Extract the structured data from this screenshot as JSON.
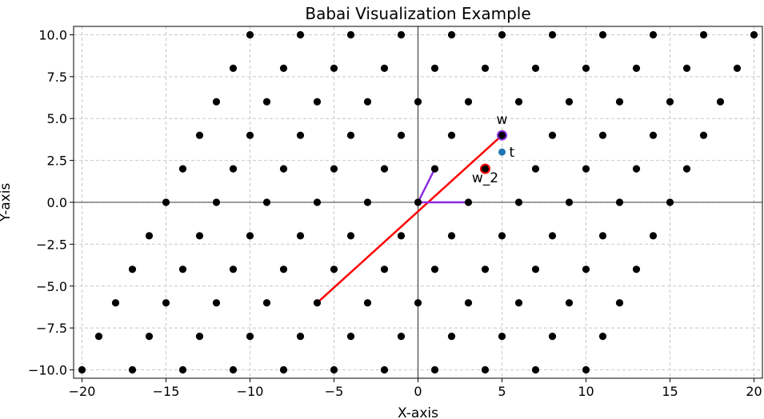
{
  "chart_data": {
    "type": "scatter",
    "title": "Babai Visualization Example",
    "xlabel": "X-axis",
    "ylabel": "Y-axis",
    "xlim": [
      -20.5,
      20.5
    ],
    "ylim": [
      -10.5,
      10.5
    ],
    "grid": true,
    "xticks": [
      -20,
      -15,
      -10,
      -5,
      0,
      5,
      10,
      15,
      20
    ],
    "xtick_labels": [
      "−20",
      "−15",
      "−10",
      "−5",
      "0",
      "5",
      "10",
      "15",
      "20"
    ],
    "yticks": [
      -10,
      -7.5,
      -5,
      -2.5,
      0,
      2.5,
      5,
      7.5,
      10
    ],
    "ytick_labels": [
      "−10.0",
      "−7.5",
      "−5.0",
      "−2.5",
      "0.0",
      "2.5",
      "5.0",
      "7.5",
      "10.0"
    ],
    "lattice_points": [
      [
        -20,
        -10
      ],
      [
        -17,
        -10
      ],
      [
        -14,
        -10
      ],
      [
        -11,
        -10
      ],
      [
        -8,
        -10
      ],
      [
        -5,
        -10
      ],
      [
        -2,
        -10
      ],
      [
        1,
        -10
      ],
      [
        4,
        -10
      ],
      [
        7,
        -10
      ],
      [
        10,
        -10
      ],
      [
        -19,
        -8
      ],
      [
        -16,
        -8
      ],
      [
        -13,
        -8
      ],
      [
        -10,
        -8
      ],
      [
        -7,
        -8
      ],
      [
        -4,
        -8
      ],
      [
        -1,
        -8
      ],
      [
        2,
        -8
      ],
      [
        5,
        -8
      ],
      [
        8,
        -8
      ],
      [
        11,
        -8
      ],
      [
        -18,
        -6
      ],
      [
        -15,
        -6
      ],
      [
        -12,
        -6
      ],
      [
        -9,
        -6
      ],
      [
        -6,
        -6
      ],
      [
        -3,
        -6
      ],
      [
        0,
        -6
      ],
      [
        3,
        -6
      ],
      [
        6,
        -6
      ],
      [
        9,
        -6
      ],
      [
        12,
        -6
      ],
      [
        -17,
        -4
      ],
      [
        -14,
        -4
      ],
      [
        -11,
        -4
      ],
      [
        -8,
        -4
      ],
      [
        -5,
        -4
      ],
      [
        -2,
        -4
      ],
      [
        1,
        -4
      ],
      [
        4,
        -4
      ],
      [
        7,
        -4
      ],
      [
        10,
        -4
      ],
      [
        13,
        -4
      ],
      [
        -16,
        -2
      ],
      [
        -13,
        -2
      ],
      [
        -10,
        -2
      ],
      [
        -7,
        -2
      ],
      [
        -4,
        -2
      ],
      [
        -1,
        -2
      ],
      [
        2,
        -2
      ],
      [
        5,
        -2
      ],
      [
        8,
        -2
      ],
      [
        11,
        -2
      ],
      [
        14,
        -2
      ],
      [
        -15,
        0
      ],
      [
        -12,
        0
      ],
      [
        -9,
        0
      ],
      [
        -6,
        0
      ],
      [
        -3,
        0
      ],
      [
        0,
        0
      ],
      [
        3,
        0
      ],
      [
        6,
        0
      ],
      [
        9,
        0
      ],
      [
        12,
        0
      ],
      [
        15,
        0
      ],
      [
        -14,
        2
      ],
      [
        -11,
        2
      ],
      [
        -8,
        2
      ],
      [
        -5,
        2
      ],
      [
        -2,
        2
      ],
      [
        1,
        2
      ],
      [
        4,
        2
      ],
      [
        7,
        2
      ],
      [
        10,
        2
      ],
      [
        13,
        2
      ],
      [
        16,
        2
      ],
      [
        -13,
        4
      ],
      [
        -10,
        4
      ],
      [
        -7,
        4
      ],
      [
        -4,
        4
      ],
      [
        -1,
        4
      ],
      [
        2,
        4
      ],
      [
        5,
        4
      ],
      [
        8,
        4
      ],
      [
        11,
        4
      ],
      [
        14,
        4
      ],
      [
        17,
        4
      ],
      [
        -12,
        6
      ],
      [
        -9,
        6
      ],
      [
        -6,
        6
      ],
      [
        -3,
        6
      ],
      [
        0,
        6
      ],
      [
        3,
        6
      ],
      [
        6,
        6
      ],
      [
        9,
        6
      ],
      [
        12,
        6
      ],
      [
        15,
        6
      ],
      [
        18,
        6
      ],
      [
        -11,
        8
      ],
      [
        -8,
        8
      ],
      [
        -5,
        8
      ],
      [
        -2,
        8
      ],
      [
        1,
        8
      ],
      [
        4,
        8
      ],
      [
        7,
        8
      ],
      [
        10,
        8
      ],
      [
        13,
        8
      ],
      [
        16,
        8
      ],
      [
        19,
        8
      ],
      [
        -10,
        10
      ],
      [
        -7,
        10
      ],
      [
        -4,
        10
      ],
      [
        -1,
        10
      ],
      [
        2,
        10
      ],
      [
        5,
        10
      ],
      [
        8,
        10
      ],
      [
        11,
        10
      ],
      [
        14,
        10
      ],
      [
        17,
        10
      ],
      [
        20,
        10
      ]
    ],
    "basis_vectors": [
      [
        3,
        0
      ],
      [
        1,
        2
      ]
    ],
    "red_line": [
      [
        -6,
        -6
      ],
      [
        5,
        4
      ]
    ],
    "w": [
      5,
      4
    ],
    "w_2": [
      4,
      2
    ],
    "t": [
      5,
      3
    ],
    "labels": {
      "w": "w",
      "w_2": "w_2",
      "t": "t"
    },
    "colors": {
      "lattice": "#000000",
      "basis": "#8a2be2",
      "red": "#ff0000",
      "target": "#1f77b4",
      "grid": "#c8c8c8"
    }
  }
}
